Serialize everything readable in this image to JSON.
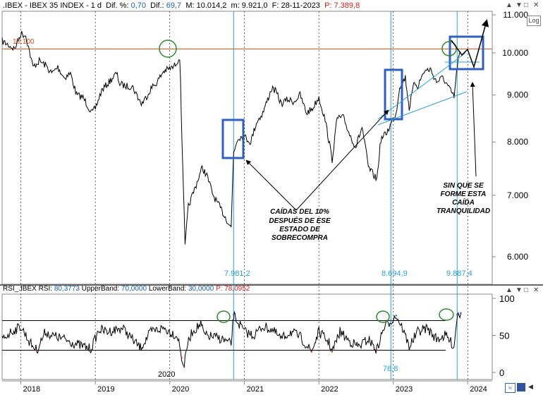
{
  "header": {
    "symbol": ".IBEX - IBEX 35 INDEX - 1 d",
    "dif_pct_label": "Dif. %:",
    "dif_pct": "0,70",
    "dif_label": "Dif.:",
    "dif": "69,7",
    "max": "M: 10.014,2",
    "min": "m: 9.921,0",
    "date": "F: 28-11-2023",
    "price": "P: 7.389,8"
  },
  "rsi_header": {
    "label": "RSI_.IBEX RSI:",
    "rsi": "80,3773",
    "upper_label": "UpperBand:",
    "upper": "70,0000",
    "lower_label": "LowerBand:",
    "lower": "30,0000",
    "price": "P: 78,0952"
  },
  "controls": {
    "log": "Log",
    "up": "▲",
    "down": "▼",
    "max": "□",
    "close": "✕"
  },
  "annotations": {
    "caidas": [
      "CAÍDAS DEL 10%",
      "DESPUÉS DE ESE",
      "ESTADO DE",
      "SOBRECOMPRA"
    ],
    "sinque": [
      "SIN QUE SE",
      "FORME ESTA",
      "CAÍDA",
      "TRANQUILIDAD"
    ],
    "level_10100": "10.100",
    "lbl_7981": "7.981,2",
    "lbl_8694": "8.694,9",
    "lbl_9887": "9.887,4",
    "lbl_76": "76,8",
    "lbl_2020": "2020"
  },
  "colors": {
    "price": "#000000",
    "resistance": "#c8501e",
    "vline": "#2aa0d8",
    "box": "#3060c0",
    "circle": "#2e8b2e",
    "rsi_low": "#d21e1e",
    "rsi_high": "#1e50c8"
  },
  "chart_data": [
    {
      "type": "line",
      "title": ".IBEX - IBEX 35 INDEX - 1 d",
      "y_scale": "log",
      "ylim": [
        5600,
        11100
      ],
      "y_ticks": [
        "11.000",
        "10.000",
        "9.000",
        "8.000",
        "7.000",
        "6.000"
      ],
      "y_tick_values": [
        11000,
        10000,
        9000,
        8000,
        7000,
        6000
      ],
      "x_ticks": [
        "2018",
        "2019",
        "2020",
        "2021",
        "2022",
        "2023",
        "2024"
      ],
      "x_tick_dates": [
        "2018-01-01",
        "2019-01-01",
        "2020-01-01",
        "2021-01-01",
        "2022-01-01",
        "2023-01-01",
        "2024-01-01"
      ],
      "x_range": [
        "2017-10-01",
        "2024-04-30"
      ],
      "horizontal_level": 10100,
      "marked_dates": [
        "2020-11-09",
        "2022-12-20",
        "2023-11-10"
      ],
      "series": [
        {
          "x": [
            "2017-10-01",
            "2017-11-01",
            "2017-12-01",
            "2018-01-01",
            "2018-01-25",
            "2018-03-01",
            "2018-04-01",
            "2018-05-01",
            "2018-06-01",
            "2018-07-01",
            "2018-08-01",
            "2018-09-01",
            "2018-10-01",
            "2018-11-01",
            "2018-12-15",
            "2019-01-01",
            "2019-02-01",
            "2019-03-01",
            "2019-04-15",
            "2019-05-01",
            "2019-06-01",
            "2019-07-01",
            "2019-08-15",
            "2019-09-01",
            "2019-10-01",
            "2019-11-01",
            "2019-12-01",
            "2020-01-20",
            "2020-02-19",
            "2020-03-01",
            "2020-03-16",
            "2020-04-01",
            "2020-05-01",
            "2020-06-08",
            "2020-07-01",
            "2020-08-01",
            "2020-09-01",
            "2020-10-28",
            "2020-11-09",
            "2020-12-01",
            "2021-01-01",
            "2021-02-01",
            "2021-03-01",
            "2021-04-01",
            "2021-05-15",
            "2021-06-01",
            "2021-07-01",
            "2021-08-01",
            "2021-09-01",
            "2021-10-01",
            "2021-11-01",
            "2021-12-01",
            "2022-01-01",
            "2022-02-01",
            "2022-03-07",
            "2022-04-01",
            "2022-05-01",
            "2022-06-01",
            "2022-07-01",
            "2022-08-01",
            "2022-09-01",
            "2022-10-12",
            "2022-11-01",
            "2022-12-01",
            "2023-01-15",
            "2023-02-01",
            "2023-03-01",
            "2023-03-20",
            "2023-04-15",
            "2023-05-01",
            "2023-06-01",
            "2023-07-01",
            "2023-08-01",
            "2023-09-01",
            "2023-10-26",
            "2023-11-15",
            "2023-11-28"
          ],
          "values": [
            10300,
            10200,
            10100,
            10500,
            10450,
            9650,
            9800,
            9700,
            9500,
            9650,
            9400,
            9500,
            9000,
            8950,
            8600,
            8700,
            9100,
            9250,
            9500,
            9250,
            9200,
            9200,
            8800,
            8900,
            9150,
            9300,
            9550,
            9650,
            9900,
            8000,
            6150,
            6800,
            7100,
            7500,
            7350,
            7000,
            6800,
            6450,
            7800,
            8100,
            8100,
            8000,
            8400,
            8600,
            9150,
            9100,
            8800,
            8900,
            8850,
            9000,
            8600,
            8700,
            8950,
            8450,
            7650,
            8500,
            8500,
            8150,
            7900,
            8300,
            7500,
            7280,
            8050,
            8200,
            8600,
            9200,
            9400,
            8700,
            9300,
            9200,
            9550,
            9600,
            9300,
            9400,
            8950,
            9850,
            10014
          ]
        }
      ]
    },
    {
      "type": "line",
      "title": "RSI_.IBEX",
      "ylim": [
        0,
        100
      ],
      "y_ticks": [
        "0",
        "50",
        "100"
      ],
      "y_tick_values": [
        0,
        50,
        100
      ],
      "upper_band": 70,
      "lower_band": 30,
      "series": [
        {
          "x": [
            "2017-10-01",
            "2017-11-15",
            "2018-01-01",
            "2018-02-15",
            "2018-03-20",
            "2018-05-01",
            "2018-06-01",
            "2018-08-01",
            "2018-10-01",
            "2018-12-10",
            "2019-01-20",
            "2019-03-01",
            "2019-05-15",
            "2019-07-01",
            "2019-08-10",
            "2019-10-01",
            "2019-12-01",
            "2020-01-20",
            "2020-02-10",
            "2020-02-28",
            "2020-03-12",
            "2020-03-25",
            "2020-04-20",
            "2020-06-01",
            "2020-06-20",
            "2020-08-01",
            "2020-09-15",
            "2020-10-28",
            "2020-11-09",
            "2020-11-20",
            "2021-01-01",
            "2021-02-15",
            "2021-04-01",
            "2021-05-15",
            "2021-07-01",
            "2021-08-15",
            "2021-10-01",
            "2021-11-26",
            "2022-01-01",
            "2022-02-20",
            "2022-03-07",
            "2022-04-15",
            "2022-06-01",
            "2022-07-15",
            "2022-09-01",
            "2022-10-12",
            "2022-11-15",
            "2022-12-20",
            "2023-01-15",
            "2023-02-15",
            "2023-03-20",
            "2023-05-01",
            "2023-06-15",
            "2023-08-01",
            "2023-09-15",
            "2023-10-26",
            "2023-11-10",
            "2023-11-28"
          ],
          "values": [
            45,
            55,
            62,
            40,
            30,
            55,
            50,
            45,
            38,
            32,
            58,
            55,
            60,
            45,
            33,
            55,
            60,
            52,
            48,
            20,
            8,
            35,
            55,
            65,
            50,
            48,
            45,
            38,
            78,
            72,
            55,
            50,
            62,
            58,
            45,
            55,
            48,
            28,
            55,
            40,
            28,
            55,
            42,
            35,
            45,
            30,
            60,
            70,
            76.8,
            60,
            35,
            55,
            60,
            45,
            50,
            35,
            78,
            80.4
          ]
        }
      ]
    }
  ]
}
